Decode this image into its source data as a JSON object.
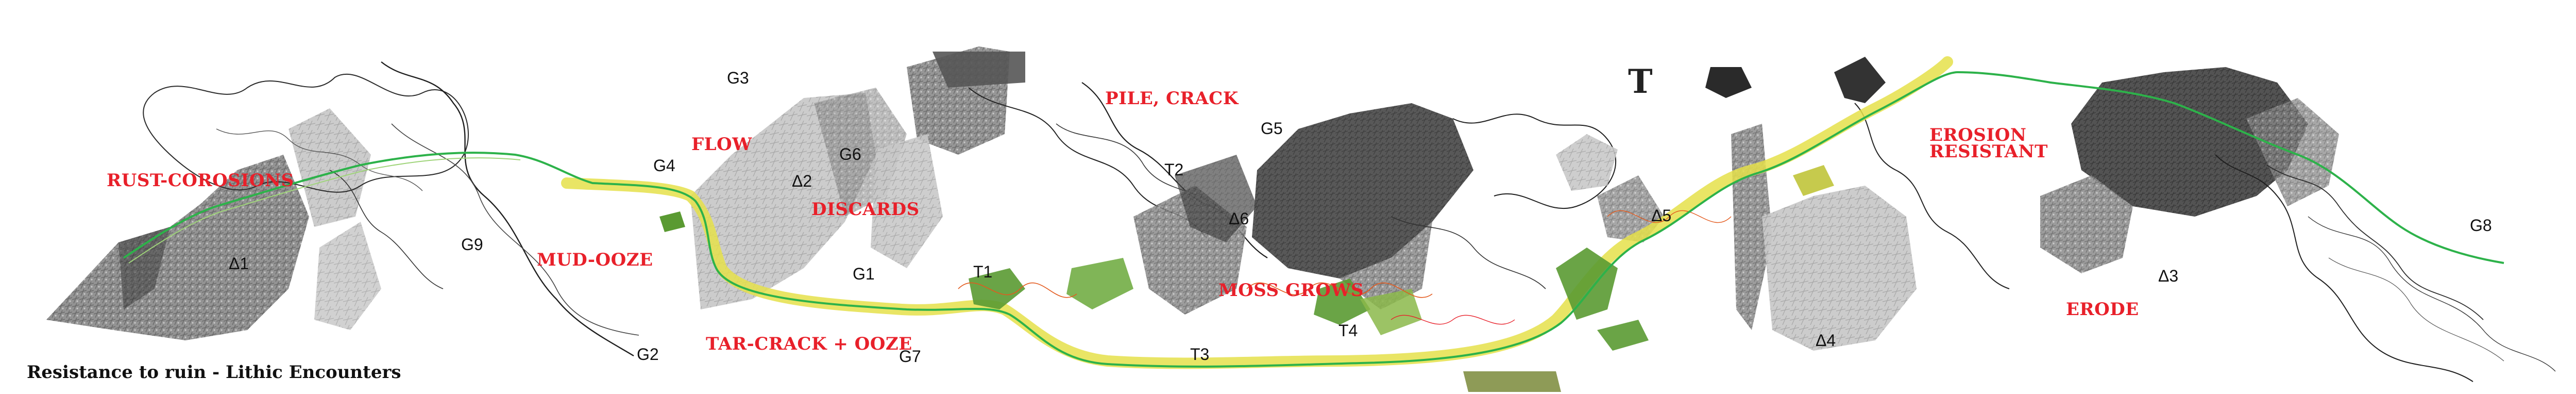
{
  "title": "Resistance to ruin - Lithic Encounters",
  "processes": {
    "rust": "RUST-COROSIONS",
    "mud": "MUD-OOZE",
    "flow": "FLOW",
    "discards": "DISCARDS",
    "pile": "PILE, CRACK",
    "tar": "TAR-CRACK + OOZE",
    "moss": "MOSS GROWS",
    "erosion_line1": "EROSION",
    "erosion_line2": "RESISTANT",
    "erode": "ERODE"
  },
  "codes": {
    "g1": "G1",
    "g2": "G2",
    "g3": "G3",
    "g4": "G4",
    "g5": "G5",
    "g6": "G6",
    "g7": "G7",
    "g8": "G8",
    "g9": "G9",
    "t1": "T1",
    "t2": "T2",
    "t3": "T3",
    "t4": "T4",
    "t": "T",
    "a1": "Δ1",
    "a2": "Δ2",
    "a3": "Δ3",
    "a4": "Δ4",
    "a5": "Δ5",
    "a6": "Δ6"
  },
  "colors": {
    "accent_red": "#e8202a",
    "path_green": "#2db24a",
    "path_yellow": "#e5e14a",
    "moss_green": "#5a9a32",
    "stone_dark": "#555555",
    "stone_light": "#bdbdbd"
  }
}
